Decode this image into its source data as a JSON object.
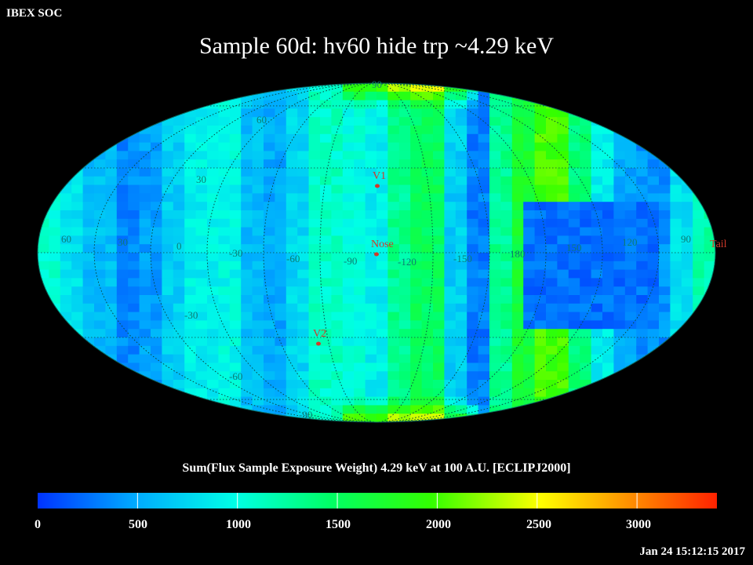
{
  "header": {
    "corner_label": "IBEX SOC",
    "title": "Sample 60d: hv60 hide trp ~4.29 keV"
  },
  "map": {
    "projection": "Mollweide",
    "value_unit_label": "Sum(Flux Sample Exposure Weight)  4.29 keV at 100 A.U. [ECLIPJ2000]",
    "longitude_labels": [
      "60",
      "30",
      "0",
      "-30",
      "-60",
      "-90",
      "-120",
      "-150",
      "180",
      "150",
      "120",
      "90"
    ],
    "latitude_labels": [
      "90",
      "60",
      "30",
      "-30",
      "-60",
      "-90"
    ],
    "markers": [
      {
        "label": "V1",
        "color": "#d13a2a"
      },
      {
        "label": "Nose",
        "color": "#d13a2a"
      },
      {
        "label": "V2",
        "color": "#d13a2a"
      },
      {
        "label": "Tail",
        "color": "#d13a2a"
      }
    ]
  },
  "colorbar": {
    "title": "Sum(Flux Sample Exposure Weight)  4.29 keV at 100 A.U. [ECLIPJ2000]",
    "ticks": [
      "0",
      "500",
      "1000",
      "1500",
      "2000",
      "2500",
      "3000"
    ],
    "range": [
      0,
      3400
    ],
    "colors": [
      "#0033ff",
      "#00a8ff",
      "#00ffe6",
      "#00ff66",
      "#33ff00",
      "#ffff00",
      "#ff9900",
      "#ff2200"
    ]
  },
  "footer": {
    "timestamp": "Jan 24 15:12:15 2017"
  }
}
